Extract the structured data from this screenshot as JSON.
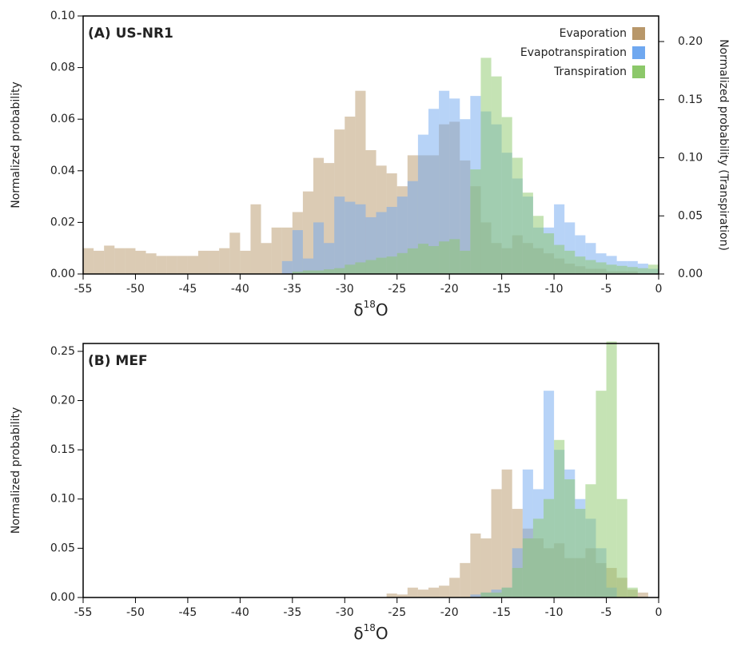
{
  "chart_data": [
    {
      "type": "histogram",
      "title": "(A) US-NR1",
      "y_label": "Normalized probability",
      "y2_label": "Normalized probability (Transpiration)",
      "x_label_symbol": "δ",
      "x_label_superscript": "18",
      "x_label_element": "O",
      "bins": [
        -55,
        -54,
        -53,
        -52,
        -51,
        -50,
        -49,
        -48,
        -47,
        -46,
        -45,
        -44,
        -43,
        -42,
        -41,
        -40,
        -39,
        -38,
        -37,
        -36,
        -35,
        -34,
        -33,
        -32,
        -31,
        -30,
        -29,
        -28,
        -27,
        -26,
        -25,
        -24,
        -23,
        -22,
        -21,
        -20,
        -19,
        -18,
        -17,
        -16,
        -15,
        -14,
        -13,
        -12,
        -11,
        -10,
        -9,
        -8,
        -7,
        -6,
        -5,
        -4,
        -3,
        -2,
        -1,
        0
      ],
      "xlim": [
        -55,
        0
      ],
      "xticks": [
        -55,
        -50,
        -45,
        -40,
        -35,
        -30,
        -25,
        -20,
        -15,
        -10,
        -5,
        0
      ],
      "ylim": [
        0,
        0.1
      ],
      "yticks": [
        {
          "value": 0,
          "label": "0.00"
        },
        {
          "value": 0.02,
          "label": "0.02"
        },
        {
          "value": 0.04,
          "label": "0.04"
        },
        {
          "value": 0.06,
          "label": "0.06"
        },
        {
          "value": 0.08,
          "label": "0.08"
        },
        {
          "value": 0.1,
          "label": "0.10"
        }
      ],
      "y2lim": [
        0,
        0.222
      ],
      "y2ticks": [
        {
          "value": 0,
          "label": "0.00"
        },
        {
          "value": 0.05,
          "label": "0.05"
        },
        {
          "value": 0.1,
          "label": "0.10"
        },
        {
          "value": 0.15,
          "label": "0.15"
        },
        {
          "value": 0.2,
          "label": "0.20"
        }
      ],
      "legend": "upper right",
      "series": [
        {
          "name": "Evaporation",
          "color": "#b8976a",
          "values": [
            0.01,
            0.009,
            0.011,
            0.01,
            0.01,
            0.009,
            0.008,
            0.007,
            0.007,
            0.007,
            0.007,
            0.009,
            0.009,
            0.01,
            0.016,
            0.009,
            0.027,
            0.012,
            0.018,
            0.018,
            0.024,
            0.032,
            0.045,
            0.043,
            0.056,
            0.061,
            0.071,
            0.048,
            0.042,
            0.039,
            0.034,
            0.046,
            0.046,
            0.046,
            0.058,
            0.059,
            0.044,
            0.034,
            0.02,
            0.012,
            0.01,
            0.015,
            0.012,
            0.01,
            0.008,
            0.006,
            0.004,
            0.003,
            0.002,
            0.002,
            0.001,
            0.001,
            0.001,
            0,
            0
          ]
        },
        {
          "name": "Evapotranspiration",
          "color": "#6fa8f0",
          "values": [
            0,
            0,
            0,
            0,
            0,
            0,
            0,
            0,
            0,
            0,
            0,
            0,
            0,
            0,
            0,
            0,
            0,
            0,
            0,
            0.005,
            0.017,
            0.006,
            0.02,
            0.012,
            0.03,
            0.028,
            0.027,
            0.022,
            0.024,
            0.026,
            0.03,
            0.036,
            0.054,
            0.064,
            0.071,
            0.068,
            0.06,
            0.069,
            0.063,
            0.058,
            0.047,
            0.037,
            0.03,
            0.018,
            0.018,
            0.027,
            0.02,
            0.015,
            0.012,
            0.008,
            0.007,
            0.005,
            0.005,
            0.004,
            0.002
          ]
        },
        {
          "name": "Transpiration",
          "color": "#8cc86a",
          "axis": "y2",
          "values": [
            0,
            0,
            0,
            0,
            0,
            0,
            0,
            0,
            0,
            0,
            0,
            0,
            0,
            0,
            0,
            0,
            0,
            0,
            0,
            0,
            0.002,
            0.003,
            0.003,
            0.004,
            0.005,
            0.008,
            0.01,
            0.012,
            0.014,
            0.015,
            0.018,
            0.022,
            0.026,
            0.024,
            0.028,
            0.03,
            0.02,
            0.09,
            0.186,
            0.17,
            0.135,
            0.1,
            0.07,
            0.05,
            0.035,
            0.025,
            0.02,
            0.015,
            0.012,
            0.01,
            0.008,
            0.007,
            0.006,
            0.005,
            0.008
          ]
        }
      ]
    },
    {
      "type": "histogram",
      "title": "(B) MEF",
      "y_label": "Normalized probability",
      "x_label_symbol": "δ",
      "x_label_superscript": "18",
      "x_label_element": "O",
      "bins": [
        -26,
        -25,
        -24,
        -23,
        -22,
        -21,
        -20,
        -19,
        -18,
        -17,
        -16,
        -15,
        -14,
        -13,
        -12,
        -11,
        -10,
        -9,
        -8,
        -7,
        -6,
        -5,
        -4,
        -3,
        -2,
        -1
      ],
      "xlim": [
        -55,
        0
      ],
      "xticks": [
        -55,
        -50,
        -45,
        -40,
        -35,
        -30,
        -25,
        -20,
        -15,
        -10,
        -5,
        0
      ],
      "ylim": [
        0,
        0.258
      ],
      "yticks": [
        {
          "value": 0,
          "label": "0.00"
        },
        {
          "value": 0.05,
          "label": "0.05"
        },
        {
          "value": 0.1,
          "label": "0.10"
        },
        {
          "value": 0.15,
          "label": "0.15"
        },
        {
          "value": 0.2,
          "label": "0.20"
        },
        {
          "value": 0.25,
          "label": "0.25"
        }
      ],
      "series": [
        {
          "name": "Evaporation",
          "color": "#b8976a",
          "values": [
            0.004,
            0.003,
            0.01,
            0.008,
            0.01,
            0.012,
            0.02,
            0.035,
            0.065,
            0.06,
            0.11,
            0.13,
            0.09,
            0.07,
            0.06,
            0.05,
            0.055,
            0.04,
            0.04,
            0.05,
            0.035,
            0.03,
            0.02,
            0.008,
            0.005
          ]
        },
        {
          "name": "Evapotranspiration",
          "color": "#6fa8f0",
          "values": [
            0,
            0,
            0,
            0,
            0,
            0,
            0,
            0,
            0.003,
            0.005,
            0.008,
            0.01,
            0.05,
            0.13,
            0.11,
            0.21,
            0.15,
            0.13,
            0.1,
            0.08,
            0.05,
            0.01,
            0,
            0,
            0
          ]
        },
        {
          "name": "Transpiration",
          "color": "#8cc86a",
          "values": [
            0,
            0,
            0,
            0,
            0,
            0,
            0,
            0,
            0,
            0.005,
            0.005,
            0.01,
            0.03,
            0.06,
            0.08,
            0.1,
            0.16,
            0.12,
            0.09,
            0.115,
            0.21,
            0.26,
            0.1,
            0.01,
            0
          ]
        }
      ]
    }
  ]
}
